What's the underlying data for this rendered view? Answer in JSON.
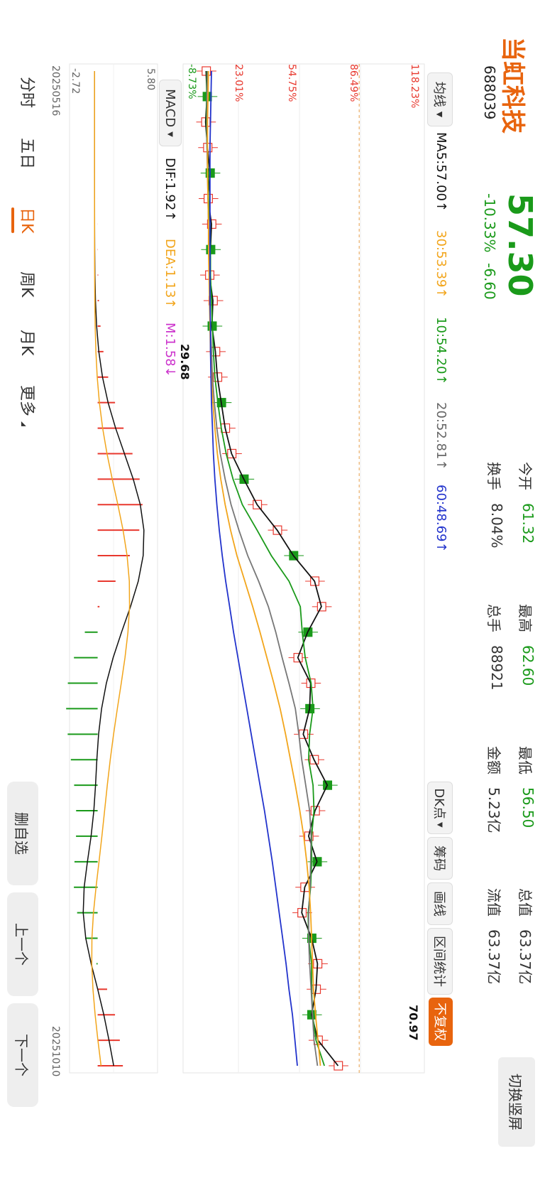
{
  "header": {
    "stock_name": "当虹科技",
    "stock_code": "688039",
    "price": "57.30",
    "change_pct": "-10.33%",
    "change_amt": "-6.60",
    "stats": [
      {
        "label": "今开",
        "value": "61.32",
        "color": "#1a9a1a"
      },
      {
        "label": "最高",
        "value": "62.60",
        "color": "#1a9a1a"
      },
      {
        "label": "最低",
        "value": "56.50",
        "color": "#1a9a1a"
      },
      {
        "label": "总值",
        "value": "63.37亿",
        "color": "#333333"
      },
      {
        "label": "换手",
        "value": "8.04%",
        "color": "#333333"
      },
      {
        "label": "总手",
        "value": "88921",
        "color": "#333333"
      },
      {
        "label": "金额",
        "value": "5.23亿",
        "color": "#333333"
      },
      {
        "label": "流值",
        "value": "63.37亿",
        "color": "#333333"
      }
    ],
    "switch_button": "切换竖屏"
  },
  "toolbar": {
    "ma_select": "均线",
    "ma5": "MA5:57.00↑",
    "ma30": "30:53.39↑",
    "ma10": "10:54.20↑",
    "ma20": "20:52.81↑",
    "ma60": "60:48.69↑",
    "dk_label": "DK点",
    "chip_label": "筹码",
    "draw_label": "画线",
    "range_label": "区间统计",
    "adjust_label": "不复权"
  },
  "price_axis": {
    "labels": [
      "118.23%",
      "86.49%",
      "54.75%",
      "23.01%",
      "-8.73%"
    ],
    "high_marker": "70.97",
    "low_marker": "29.68"
  },
  "macd_panel": {
    "select": "MACD",
    "dif": "DIF:1.92↑",
    "dea": "DEA:1.13↑",
    "m": "M:1.58↓",
    "top": "5.80",
    "bottom": "-2.72"
  },
  "dates": {
    "start": "20250516",
    "end": "20251010"
  },
  "period_tabs": [
    "分时",
    "五日",
    "日K",
    "周K",
    "月K",
    "更多"
  ],
  "active_tab": "日K",
  "side_buttons": [
    "删自选",
    "上一个",
    "下一个"
  ],
  "colors": {
    "up": "#e8382e",
    "down": "#1a9a1a",
    "accent": "#e8640e",
    "ma5": "#111111",
    "ma10": "#1a9a1a",
    "ma20": "#777777",
    "ma30": "#f2a51b",
    "ma60": "#2233cc"
  },
  "chart_data": {
    "type": "candlestick",
    "x_range": [
      "20250516",
      "20251010"
    ],
    "series": [
      {
        "name": "MA5",
        "values": [
          30.1,
          30.3,
          30.0,
          30.4,
          30.9,
          30.5,
          31.2,
          31.0,
          30.8,
          31.5,
          31.3,
          32.0,
          32.4,
          33.2,
          34.0,
          35.3,
          37.8,
          40.5,
          44.6,
          47.9,
          52.2,
          53.6,
          50.8,
          48.8,
          51.4,
          51.2,
          49.9,
          52.1,
          54.8,
          52.3,
          51.0,
          52.7,
          50.2,
          49.6,
          51.6,
          52.8,
          52.5,
          51.6,
          52.9,
          57.0
        ]
      },
      {
        "name": "MA10",
        "values": [
          30.3,
          30.2,
          30.2,
          30.3,
          30.5,
          30.6,
          30.9,
          31.0,
          31.0,
          31.2,
          31.4,
          31.6,
          31.9,
          32.5,
          33.2,
          34.2,
          35.6,
          37.5,
          40.5,
          43.4,
          47.0,
          49.3,
          49.7,
          50.3,
          51.5,
          51.9,
          51.2,
          51.0,
          51.9,
          52.1,
          51.6,
          51.6,
          51.4,
          50.9,
          51.0,
          51.6,
          51.6,
          51.8,
          52.5,
          54.2
        ]
      },
      {
        "name": "MA20",
        "values": [
          30.4,
          30.3,
          30.3,
          30.3,
          30.4,
          30.5,
          30.6,
          30.7,
          30.8,
          30.9,
          31.0,
          31.2,
          31.4,
          31.8,
          32.3,
          33.0,
          34.0,
          35.2,
          36.8,
          38.6,
          40.8,
          42.8,
          44.3,
          45.6,
          47.0,
          48.3,
          49.0,
          49.6,
          50.4,
          51.2,
          51.5,
          51.4,
          51.3,
          51.0,
          51.0,
          51.2,
          51.5,
          51.8,
          52.1,
          52.8
        ]
      },
      {
        "name": "MA30",
        "values": [
          30.6,
          30.5,
          30.4,
          30.4,
          30.4,
          30.5,
          30.6,
          30.6,
          30.7,
          30.8,
          30.9,
          31.0,
          31.2,
          31.5,
          31.9,
          32.4,
          33.1,
          34.0,
          35.1,
          36.4,
          38.0,
          39.6,
          41.1,
          42.5,
          43.9,
          45.2,
          46.3,
          47.3,
          48.3,
          49.2,
          50.0,
          50.6,
          51.1,
          51.4,
          51.6,
          51.8,
          52.0,
          52.4,
          52.9,
          53.4
        ]
      },
      {
        "name": "MA60",
        "values": [
          31.2,
          31.1,
          31.0,
          30.9,
          30.9,
          30.9,
          30.9,
          30.9,
          30.9,
          30.9,
          31.0,
          31.0,
          31.1,
          31.2,
          31.4,
          31.6,
          31.9,
          32.3,
          32.8,
          33.4,
          34.1,
          34.9,
          35.7,
          36.6,
          37.5,
          38.4,
          39.3,
          40.2,
          41.1,
          42.0,
          42.8,
          43.6,
          44.3,
          45.0,
          45.7,
          46.4,
          47.0,
          47.7,
          48.2,
          48.7
        ]
      }
    ],
    "macd": {
      "dif_last": 1.92,
      "dea_last": 1.13,
      "m_last": 1.58,
      "range": [
        -2.72,
        5.8
      ]
    }
  }
}
